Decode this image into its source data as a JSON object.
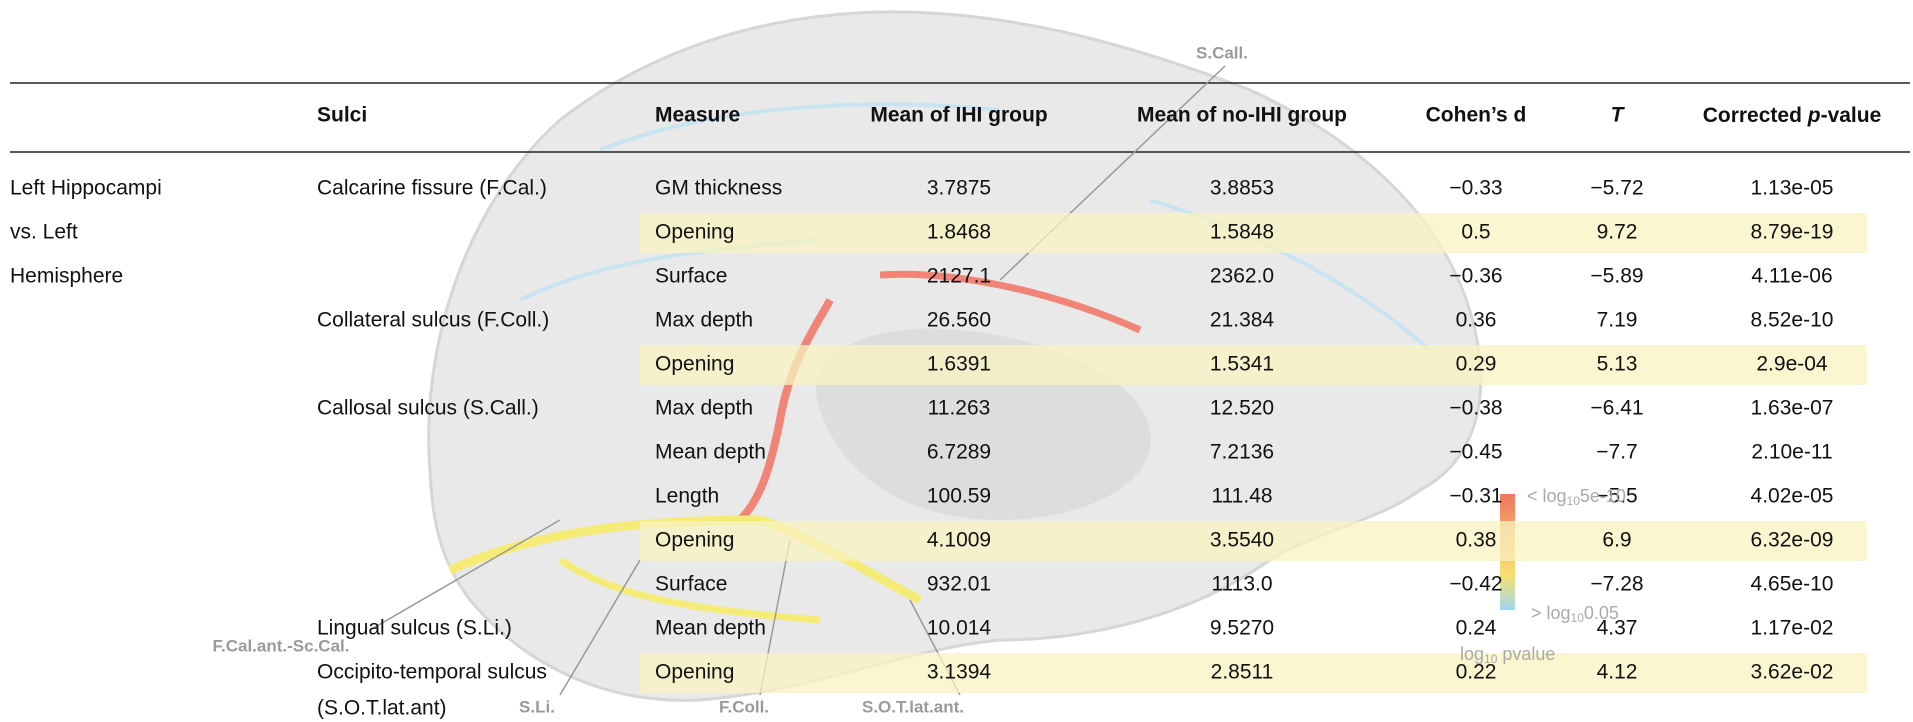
{
  "table": {
    "header": [
      "Sulci",
      "Measure",
      "Mean of IHI group",
      "Mean of no-IHI group",
      "Cohen’s d",
      "T",
      "Corrected p-value"
    ],
    "header_p": {
      "prefix": "Corrected ",
      "italic": "p",
      "suffix": "-value"
    },
    "rows": [
      {
        "group": "Left Hippocampi",
        "sulcus": "Calcarine fissure (F.Cal.)",
        "measure": "GM thickness",
        "ihi": "3.7875",
        "noihi": "3.8853",
        "d": "−0.33",
        "t": "−5.72",
        "p": "1.13e-05",
        "highlight": false
      },
      {
        "group": "vs. Left",
        "measure": "Opening",
        "ihi": "1.8468",
        "noihi": "1.5848",
        "d": "0.5",
        "t": "9.72",
        "p": "8.79e-19",
        "highlight": true
      },
      {
        "group": "Hemisphere",
        "measure": "Surface",
        "ihi": "2127.1",
        "noihi": "2362.0",
        "d": "−0.36",
        "t": "−5.89",
        "p": "4.11e-06",
        "highlight": false
      },
      {
        "sulcus": "Collateral sulcus (F.Coll.)",
        "measure": "Max depth",
        "ihi": "26.560",
        "noihi": "21.384",
        "d": "0.36",
        "t": "7.19",
        "p": "8.52e-10",
        "highlight": false
      },
      {
        "measure": "Opening",
        "ihi": "1.6391",
        "noihi": "1.5341",
        "d": "0.29",
        "t": "5.13",
        "p": "2.9e-04",
        "highlight": true
      },
      {
        "sulcus": "Callosal sulcus (S.Call.)",
        "measure": "Max depth",
        "ihi": "11.263",
        "noihi": "12.520",
        "d": "−0.38",
        "t": "−6.41",
        "p": "1.63e-07",
        "highlight": false
      },
      {
        "measure": "Mean depth",
        "ihi": "6.7289",
        "noihi": "7.2136",
        "d": "−0.45",
        "t": "−7.7",
        "p": "2.10e-11",
        "highlight": false
      },
      {
        "measure": "Length",
        "ihi": "100.59",
        "noihi": "111.48",
        "d": "−0.31",
        "t": "−5.5",
        "p": "4.02e-05",
        "highlight": false
      },
      {
        "measure": "Opening",
        "ihi": "4.1009",
        "noihi": "3.5540",
        "d": "0.38",
        "t": "6.9",
        "p": "6.32e-09",
        "highlight": true
      },
      {
        "measure": "Surface",
        "ihi": "932.01",
        "noihi": "1113.0",
        "d": "−0.42",
        "t": "−7.28",
        "p": "4.65e-10",
        "highlight": false
      },
      {
        "sulcus": "Lingual sulcus (S.Li.)",
        "measure": "Mean depth",
        "ihi": "10.014",
        "noihi": "9.5270",
        "d": "0.24",
        "t": "4.37",
        "p": "1.17e-02",
        "highlight": false
      },
      {
        "sulcus": "Occipito-temporal sulcus",
        "sulcus2": "(S.O.T.lat.ant)",
        "measure": "Opening",
        "ihi": "3.1394",
        "noihi": "2.8511",
        "d": "0.22",
        "t": "4.12",
        "p": "3.62e-02",
        "highlight": true
      }
    ]
  },
  "figure": {
    "labels": [
      "S.Call.",
      "F.Cal.ant.-Sc.Cal.",
      "S.Li.",
      "F.Coll.",
      "S.O.T.lat.ant."
    ],
    "colorbar": {
      "top": {
        "prefix": "< log",
        "sub": "10",
        "suffix": "5e-10"
      },
      "bottom": {
        "prefix": "> log",
        "sub": "10",
        "suffix": "0.05"
      },
      "title": {
        "prefix": "log",
        "sub": "10",
        "suffix": " pvalue"
      }
    }
  }
}
